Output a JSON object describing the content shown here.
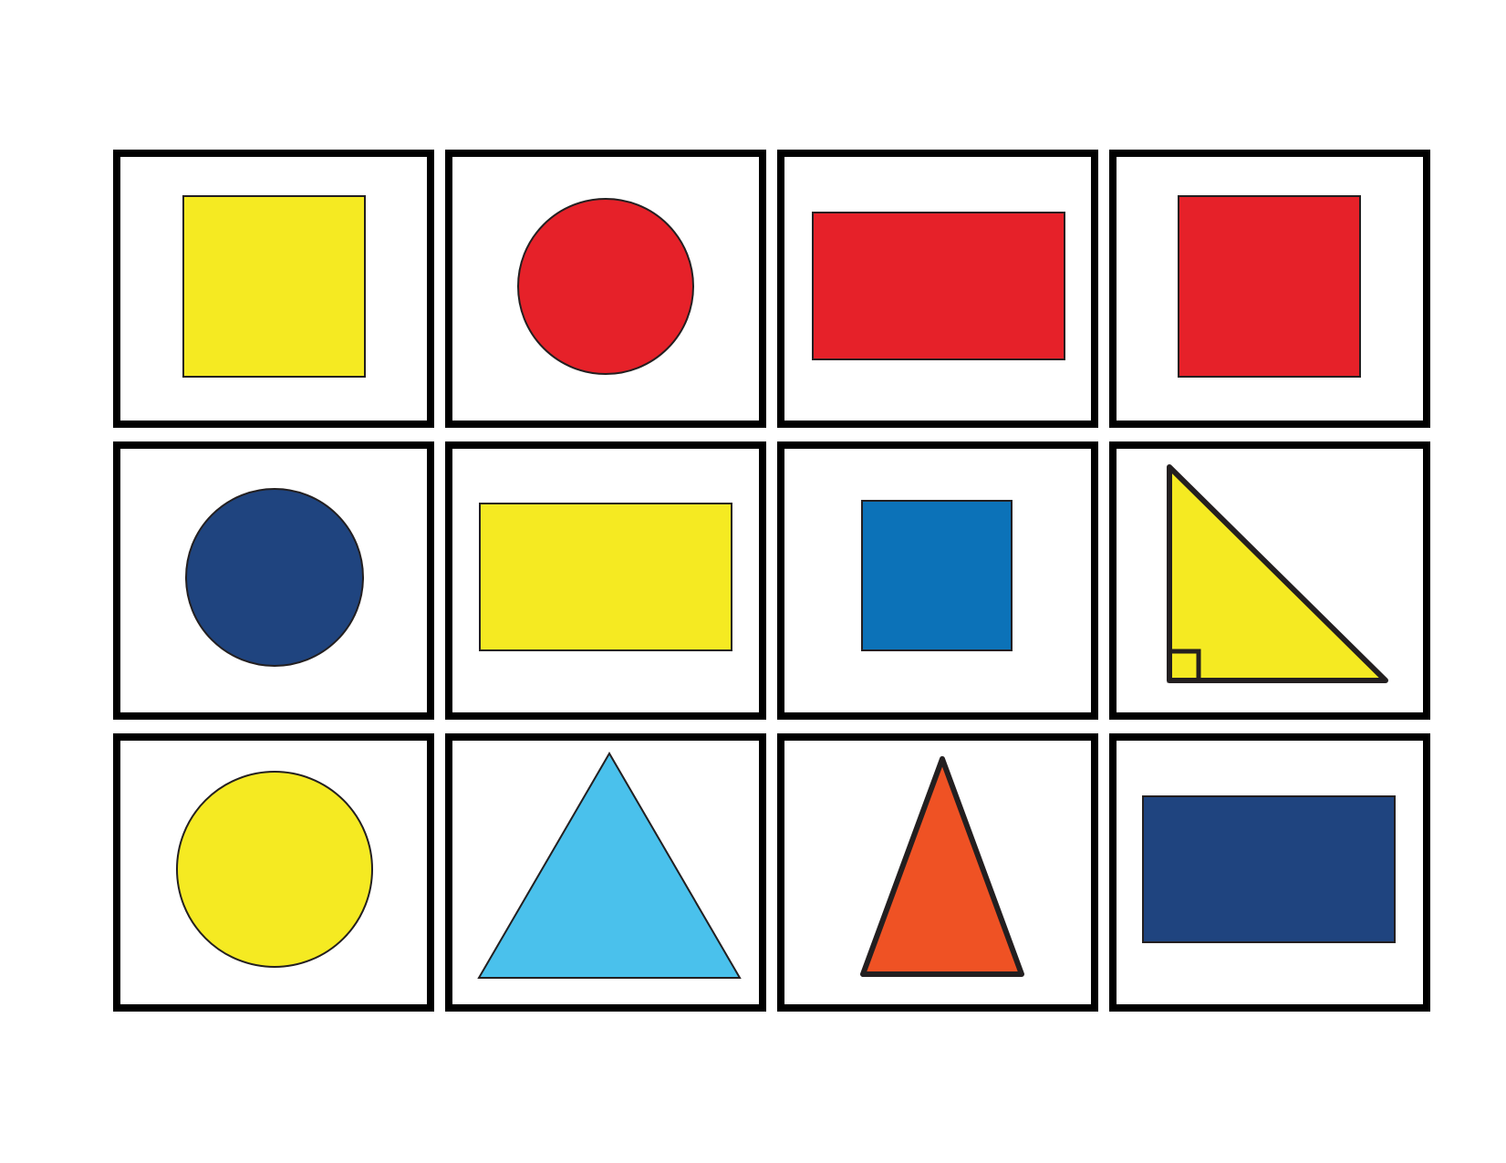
{
  "sheet": {
    "background": "#ffffff",
    "card_border_color": "#000000",
    "shape_outline_color": "#231f20"
  },
  "colors": {
    "yellow": "#f5ea22",
    "red": "#e62129",
    "dark_blue": "#1f447f",
    "blue": "#0c72b8",
    "light_blue": "#4ac1ec",
    "orange": "#ef5224"
  },
  "cards": [
    {
      "row": 1,
      "col": 1,
      "shape": "square",
      "color": "yellow"
    },
    {
      "row": 1,
      "col": 2,
      "shape": "circle",
      "color": "red"
    },
    {
      "row": 1,
      "col": 3,
      "shape": "rectangle",
      "color": "red"
    },
    {
      "row": 1,
      "col": 4,
      "shape": "square",
      "color": "red"
    },
    {
      "row": 2,
      "col": 1,
      "shape": "circle",
      "color": "dark_blue"
    },
    {
      "row": 2,
      "col": 2,
      "shape": "rectangle",
      "color": "yellow"
    },
    {
      "row": 2,
      "col": 3,
      "shape": "square",
      "color": "blue"
    },
    {
      "row": 2,
      "col": 4,
      "shape": "right-triangle",
      "color": "yellow"
    },
    {
      "row": 3,
      "col": 1,
      "shape": "circle",
      "color": "yellow"
    },
    {
      "row": 3,
      "col": 2,
      "shape": "equilateral-triangle",
      "color": "light_blue"
    },
    {
      "row": 3,
      "col": 3,
      "shape": "isosceles-triangle",
      "color": "orange"
    },
    {
      "row": 3,
      "col": 4,
      "shape": "rectangle",
      "color": "dark_blue"
    }
  ]
}
